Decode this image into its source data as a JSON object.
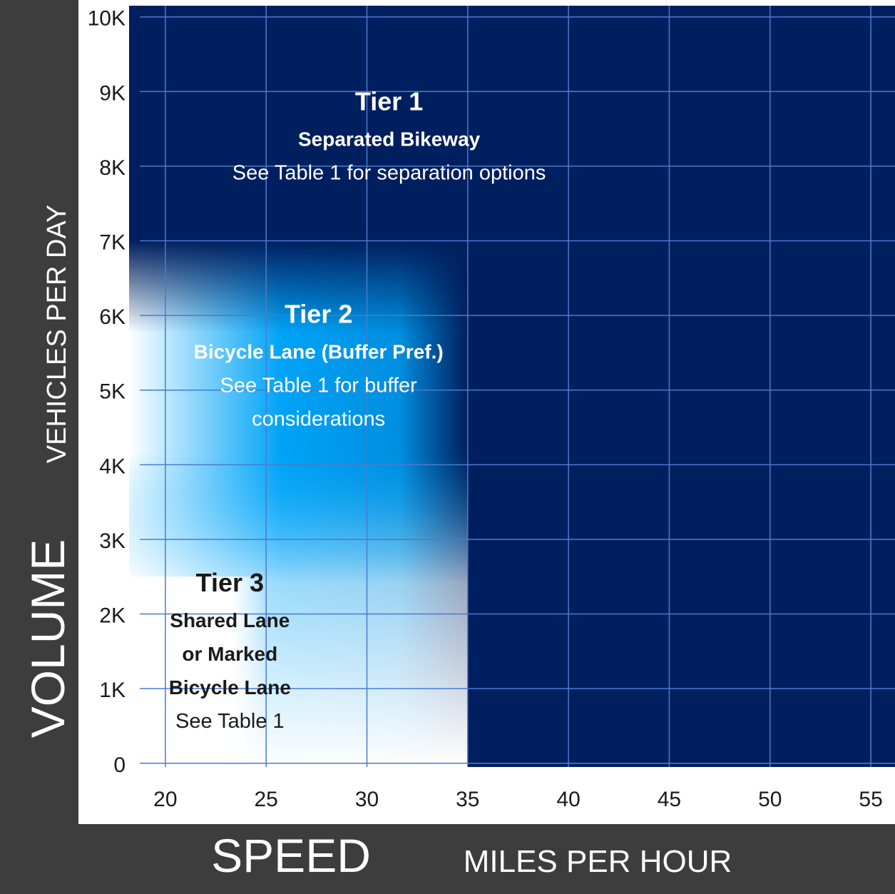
{
  "chart_data": {
    "type": "area",
    "x": {
      "title": "SPEED",
      "unit_label": "MILES PER HOUR",
      "ticks": [
        20,
        25,
        30,
        35,
        40,
        45,
        50,
        55
      ],
      "range": [
        18.2,
        56.2
      ]
    },
    "y": {
      "title": "VOLUME",
      "unit_label": "VEHICLES PER DAY",
      "tick_values": [
        0,
        1000,
        2000,
        3000,
        4000,
        5000,
        6000,
        7000,
        8000,
        9000,
        10000
      ],
      "tick_labels": [
        "0",
        "1K",
        "2K",
        "3K",
        "4K",
        "5K",
        "6K",
        "7K",
        "8K",
        "9K",
        "10K"
      ],
      "range": [
        -50,
        10150
      ]
    },
    "grid": true,
    "regions": [
      {
        "name": "Tier 1",
        "title": "Tier 1",
        "lines": [
          "Separated Bikeway",
          "See Table 1 for separation options"
        ],
        "bold_lines": 1,
        "label_x": 31.1,
        "label_y": 8750,
        "text_color": "#ffffff",
        "fill": "#001f5e"
      },
      {
        "name": "Tier 2",
        "title": "Tier 2",
        "lines": [
          "Bicycle Lane (Buffer Pref.)",
          "See Table 1 for buffer",
          "considerations"
        ],
        "bold_lines": 1,
        "label_x": 27.6,
        "label_y": 5900,
        "text_color": "#ffffff",
        "x_max": 35,
        "y_max": 7000,
        "fill": "#00aaff"
      },
      {
        "name": "Tier 3",
        "title": "Tier 3",
        "lines": [
          "Shared Lane",
          "or Marked",
          "Bicycle Lane",
          "See Table 1"
        ],
        "bold_lines": 3,
        "label_x": 23.2,
        "label_y": 2300,
        "text_color": "#1a1a1a",
        "x_max": 25,
        "y_max": 2500,
        "fill": "#ffffff"
      }
    ]
  },
  "colors": {
    "frame": "#3d3d3d",
    "plot_bg": "#001f5e",
    "grid": "#4a7bd0",
    "tier2": "#00aaff"
  }
}
